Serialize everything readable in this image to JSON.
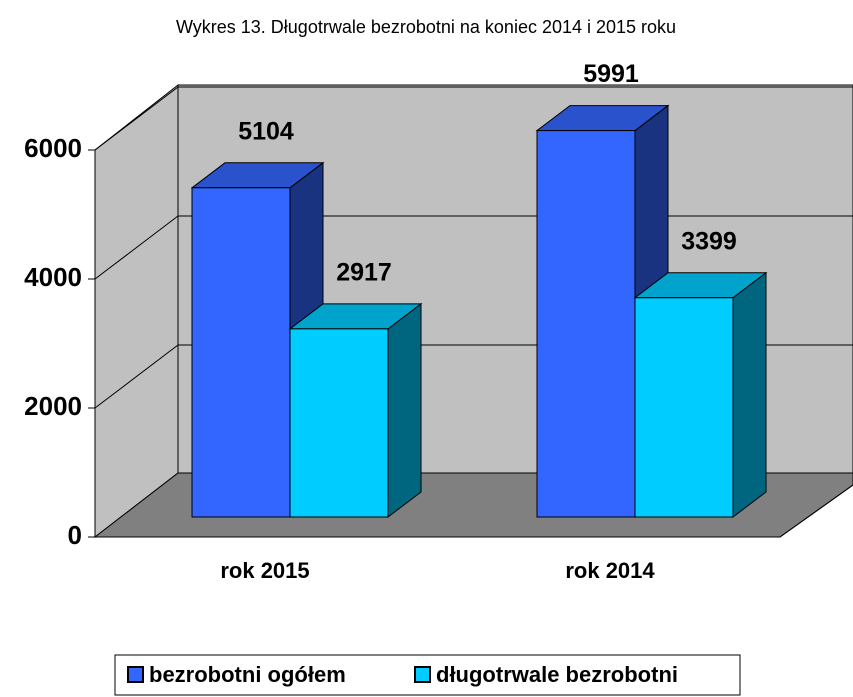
{
  "chart_data": {
    "type": "bar3d",
    "title": "Wykres 13. Długotrwale bezrobotni na koniec 2014 i 2015 roku",
    "categories": [
      "rok 2015",
      "rok 2014"
    ],
    "series": [
      {
        "name": "bezrobotni ogółem",
        "color": "#3366ff",
        "values": [
          5104,
          5991
        ]
      },
      {
        "name": "długotrwale bezrobotni",
        "color": "#00ccff",
        "values": [
          2917,
          3399
        ]
      }
    ],
    "ylim": [
      0,
      6000
    ],
    "yticks": [
      0,
      2000,
      4000,
      6000
    ],
    "grid": true,
    "legend": "bottom"
  }
}
